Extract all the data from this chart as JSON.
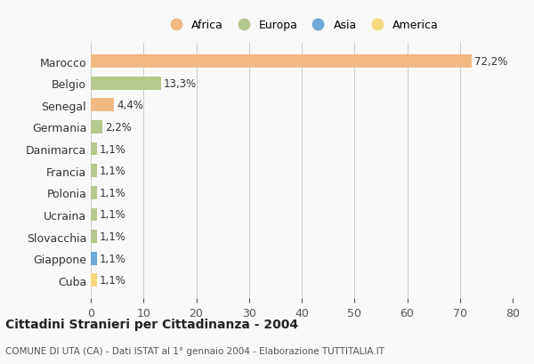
{
  "countries": [
    "Marocco",
    "Belgio",
    "Senegal",
    "Germania",
    "Danimarca",
    "Francia",
    "Polonia",
    "Ucraina",
    "Slovacchia",
    "Giappone",
    "Cuba"
  ],
  "values": [
    72.2,
    13.3,
    4.4,
    2.2,
    1.1,
    1.1,
    1.1,
    1.1,
    1.1,
    1.1,
    1.1
  ],
  "labels": [
    "72,2%",
    "13,3%",
    "4,4%",
    "2,2%",
    "1,1%",
    "1,1%",
    "1,1%",
    "1,1%",
    "1,1%",
    "1,1%",
    "1,1%"
  ],
  "colors": [
    "#f0b984",
    "#b5c98e",
    "#f0b984",
    "#b5c98e",
    "#b5c98e",
    "#b5c98e",
    "#b5c98e",
    "#b5c98e",
    "#b5c98e",
    "#6fa8d4",
    "#f5d77e"
  ],
  "legend": [
    {
      "label": "Africa",
      "color": "#f0b984"
    },
    {
      "label": "Europa",
      "color": "#b5c98e"
    },
    {
      "label": "Asia",
      "color": "#6fa8d4"
    },
    {
      "label": "America",
      "color": "#f5d77e"
    }
  ],
  "xlim": [
    0,
    80
  ],
  "xticks": [
    0,
    10,
    20,
    30,
    40,
    50,
    60,
    70,
    80
  ],
  "title": "Cittadini Stranieri per Cittadinanza - 2004",
  "subtitle": "COMUNE DI UTA (CA) - Dati ISTAT al 1° gennaio 2004 - Elaborazione TUTTITALIA.IT",
  "background_color": "#f9f9f9"
}
